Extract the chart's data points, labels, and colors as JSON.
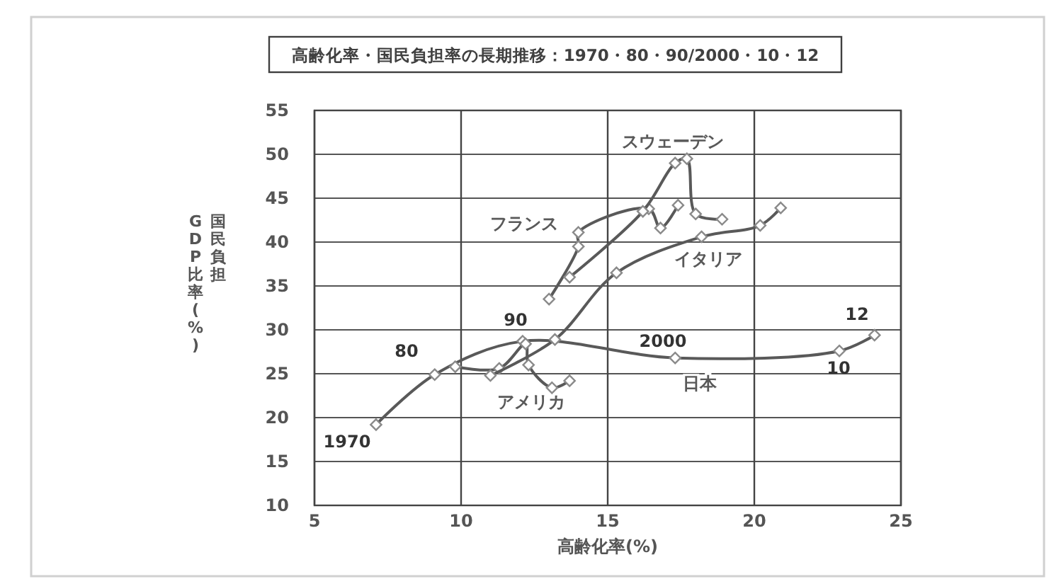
{
  "chart_data": {
    "type": "line",
    "title": "高齢化率・国民負担率の長期推移：1970・80・90/2000・10・12",
    "xlabel": "高齢化率(%)",
    "ylabel": "国民負担\nGDP比率(%)",
    "xlim": [
      5,
      25
    ],
    "xticks": [
      5,
      10,
      15,
      20,
      25
    ],
    "ylim": [
      10,
      55
    ],
    "yticks": [
      10,
      15,
      20,
      25,
      30,
      35,
      40,
      45,
      50,
      55
    ],
    "grid": true,
    "marker": "diamond",
    "line_style": "solid",
    "series": [
      {
        "name": "日本",
        "color": "#595959",
        "x": [
          7.1,
          9.1,
          12.1,
          17.3,
          22.9,
          24.1
        ],
        "values": [
          19.2,
          24.9,
          28.7,
          26.8,
          27.6,
          29.4
        ]
      },
      {
        "name": "アメリカ",
        "color": "#595959",
        "x": [
          9.8,
          11.3,
          12.2,
          12.3,
          13.1,
          13.7
        ],
        "values": [
          25.8,
          25.6,
          28.4,
          26.0,
          23.4,
          24.2
        ]
      },
      {
        "name": "イタリア",
        "color": "#595959",
        "x": [
          11.0,
          13.2,
          15.3,
          18.2,
          20.2,
          20.9
        ],
        "values": [
          24.8,
          28.9,
          36.5,
          40.6,
          41.9,
          43.9
        ]
      },
      {
        "name": "フランス",
        "color": "#595959",
        "x": [
          13.0,
          14.0,
          14.0,
          16.4,
          16.8,
          17.4
        ],
        "values": [
          33.5,
          39.5,
          41.1,
          43.8,
          41.6,
          44.2
        ]
      },
      {
        "name": "スウェーデン",
        "color": "#595959",
        "x": [
          13.7,
          16.2,
          17.3,
          17.7,
          18.0,
          18.9
        ],
        "values": [
          36.0,
          43.5,
          49.0,
          49.5,
          43.2,
          42.6
        ]
      }
    ],
    "annotations": [
      "1970",
      "80",
      "90",
      "2000",
      "10",
      "12"
    ]
  }
}
